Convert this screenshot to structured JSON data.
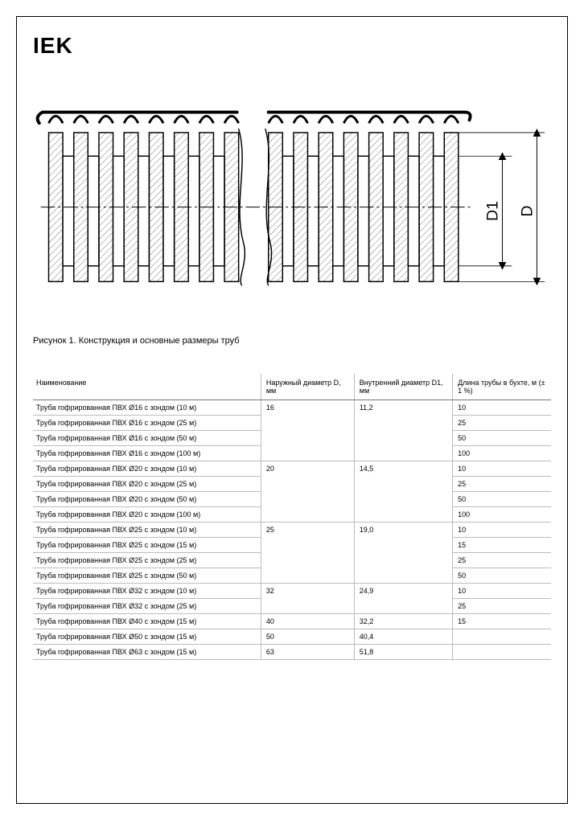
{
  "logo": "IEK",
  "caption": "Рисунок 1. Конструкция и основные размеры труб",
  "diagram": {
    "label_outer": "D",
    "label_inner": "D1",
    "stroke": "#000000",
    "fill_hatch": "#808080",
    "background": "#ffffff"
  },
  "table": {
    "columns": [
      "Наименование",
      "Наружный диаметр D, мм",
      "Внутренний диаметр D1, мм",
      "Длина трубы в бухте, м (± 1 %)"
    ],
    "groups": [
      {
        "d": "16",
        "d1": "11,2",
        "rows": [
          {
            "name": "Труба гофрированная ПВХ Ø16 с зондом (10 м)",
            "len": "10"
          },
          {
            "name": "Труба гофрированная ПВХ Ø16 с зондом (25 м)",
            "len": "25"
          },
          {
            "name": "Труба гофрированная ПВХ Ø16 с зондом (50 м)",
            "len": "50"
          },
          {
            "name": "Труба гофрированная ПВХ Ø16 с зондом (100 м)",
            "len": "100"
          }
        ]
      },
      {
        "d": "20",
        "d1": "14,5",
        "rows": [
          {
            "name": "Труба гофрированная ПВХ Ø20 с зондом (10 м)",
            "len": "10"
          },
          {
            "name": "Труба гофрированная ПВХ Ø20 с зондом (25 м)",
            "len": "25"
          },
          {
            "name": "Труба гофрированная ПВХ Ø20 с зондом (50 м)",
            "len": "50"
          },
          {
            "name": "Труба гофрированная ПВХ Ø20 с зондом (100 м)",
            "len": "100"
          }
        ]
      },
      {
        "d": "25",
        "d1": "19,0",
        "rows": [
          {
            "name": "Труба гофрированная ПВХ Ø25 с зондом (10 м)",
            "len": "10"
          },
          {
            "name": "Труба гофрированная ПВХ Ø25 с зондом (15 м)",
            "len": "15"
          },
          {
            "name": "Труба гофрированная ПВХ Ø25 с зондом (25 м)",
            "len": "25"
          },
          {
            "name": "Труба гофрированная ПВХ Ø25 с зондом (50 м)",
            "len": "50"
          }
        ]
      },
      {
        "d": "32",
        "d1": "24,9",
        "rows": [
          {
            "name": "Труба гофрированная ПВХ Ø32 с зондом (10 м)",
            "len": "10"
          },
          {
            "name": "Труба гофрированная ПВХ Ø32 с зондом (25 м)",
            "len": "25"
          }
        ]
      },
      {
        "d": "40",
        "d1": "32,2",
        "rows": [
          {
            "name": "Труба гофрированная ПВХ Ø40 с зондом (15 м)",
            "len": "15"
          }
        ]
      },
      {
        "d": "50",
        "d1": "40,4",
        "rows": [
          {
            "name": "Труба гофрированная ПВХ Ø50 с зондом (15 м)",
            "len": ""
          }
        ]
      },
      {
        "d": "63",
        "d1": "51,8",
        "rows": [
          {
            "name": "Труба гофрированная ПВХ Ø63 с зондом (15 м)",
            "len": ""
          }
        ]
      }
    ]
  }
}
